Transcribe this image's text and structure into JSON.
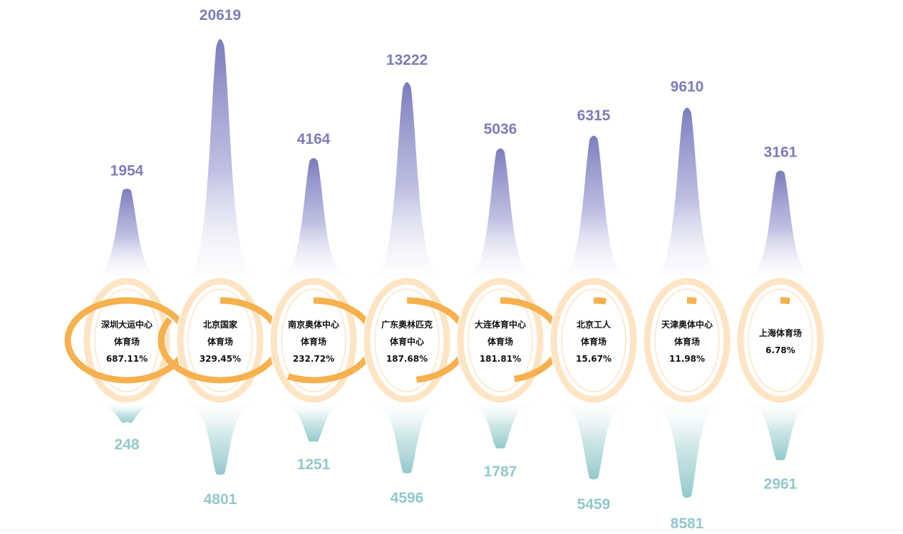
{
  "chart_data": {
    "type": "bar",
    "categories": [
      [
        "深圳大运中心",
        "体育场"
      ],
      [
        "北京国家",
        "体育场"
      ],
      [
        "南京奥体中心",
        "体育场"
      ],
      [
        "广东奥林匹克",
        "体育中心"
      ],
      [
        "大连体育中心",
        "体育场"
      ],
      [
        "北京工人",
        "体育场"
      ],
      [
        "天津奥体中心",
        "体育场"
      ],
      [
        "上海体育场"
      ]
    ],
    "series": [
      {
        "values": [
          1954,
          20619,
          4164,
          13222,
          5036,
          6315,
          9610,
          3161
        ]
      },
      {
        "values": [
          248,
          4801,
          1251,
          4596,
          1787,
          5459,
          8581,
          2961
        ]
      }
    ],
    "percent_labels": [
      "687.11%",
      "329.45%",
      "232.72%",
      "187.68%",
      "181.81%",
      "15.67%",
      "11.98%",
      "6.78%"
    ],
    "percent_values": [
      687.11,
      329.45,
      232.72,
      187.68,
      181.81,
      15.67,
      11.98,
      6.78
    ],
    "colors": {
      "top": "#7b7cbc",
      "top_fade": "#f3f3fb",
      "bottom": "#93c8cb",
      "bottom_fade": "#f1f8f8",
      "ring_track": "#fde4c4",
      "ring_fill": "#f6b04e",
      "text": "#111111"
    }
  }
}
